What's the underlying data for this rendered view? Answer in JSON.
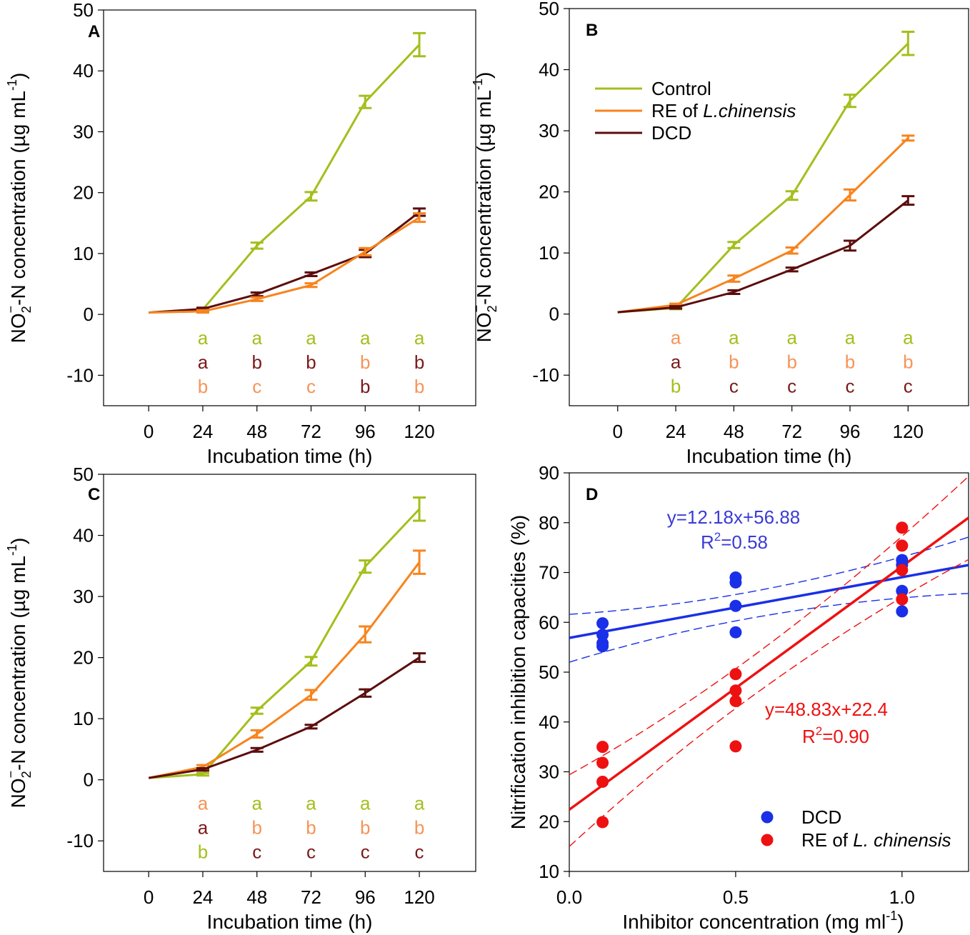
{
  "colors": {
    "control": "#a3bf1c",
    "re": "#f7841e",
    "dcd": "#5c0d0d",
    "letter_control": "#a3bf1c",
    "letter_re": "#f69458",
    "letter_dcd": "#7a1a1a",
    "blue_point": "#1a2fe8",
    "blue_line": "#1a2fe8",
    "blue_text": "#3b3bd6",
    "red_point": "#ee1111",
    "red_line": "#ee1111"
  },
  "chart_data": [
    {
      "panel": "A",
      "type": "line",
      "xlabel": "Incubation time (h)",
      "ylabel_parts": {
        "a": "NO",
        "sub": "2",
        "sup": "−",
        "b": "-N concentration (µg mL",
        "sup2": "-1",
        "c": ")"
      },
      "x": [
        0,
        24,
        48,
        72,
        96,
        120
      ],
      "xlim": [
        -20,
        145
      ],
      "ylim": [
        -15,
        50
      ],
      "yticks": [
        -10,
        0,
        10,
        20,
        30,
        40,
        50
      ],
      "series": [
        {
          "name": "Control",
          "color_key": "control",
          "values": [
            0.3,
            0.8,
            11.3,
            19.4,
            34.9,
            44.3
          ],
          "errors": [
            0.2,
            0.2,
            0.5,
            0.7,
            1.0,
            1.9
          ]
        },
        {
          "name": "DCD",
          "color_key": "dcd",
          "values": [
            0.3,
            0.9,
            3.3,
            6.6,
            10.0,
            16.8
          ],
          "errors": [
            0.1,
            0.2,
            0.3,
            0.3,
            0.6,
            0.6
          ]
        },
        {
          "name": "RE of L.chinensis",
          "color_key": "re",
          "values": [
            0.3,
            0.5,
            2.5,
            4.8,
            10.3,
            15.9
          ],
          "errors": [
            0.1,
            0.2,
            0.3,
            0.3,
            0.6,
            0.7
          ]
        }
      ],
      "letters": [
        {
          "x": 24,
          "rows": [
            [
              "a",
              "letter_control"
            ],
            [
              "a",
              "letter_dcd"
            ],
            [
              "b",
              "letter_re"
            ]
          ]
        },
        {
          "x": 48,
          "rows": [
            [
              "a",
              "letter_control"
            ],
            [
              "b",
              "letter_dcd"
            ],
            [
              "c",
              "letter_re"
            ]
          ]
        },
        {
          "x": 72,
          "rows": [
            [
              "a",
              "letter_control"
            ],
            [
              "b",
              "letter_dcd"
            ],
            [
              "c",
              "letter_re"
            ]
          ]
        },
        {
          "x": 96,
          "rows": [
            [
              "a",
              "letter_control"
            ],
            [
              "b",
              "letter_re"
            ],
            [
              "b",
              "letter_dcd"
            ]
          ]
        },
        {
          "x": 120,
          "rows": [
            [
              "a",
              "letter_control"
            ],
            [
              "b",
              "letter_dcd"
            ],
            [
              "b",
              "letter_re"
            ]
          ]
        }
      ]
    },
    {
      "panel": "B",
      "type": "line",
      "xlabel": "Incubation time (h)",
      "ylabel_parts": {
        "a": "NO",
        "sub": "2",
        "sup": "−",
        "b": "-N concentration (µg mL",
        "sup2": "-1",
        "c": ")"
      },
      "x": [
        0,
        24,
        48,
        72,
        96,
        120
      ],
      "xlim": [
        -20,
        145
      ],
      "ylim": [
        -15,
        50
      ],
      "yticks": [
        -10,
        0,
        10,
        20,
        30,
        40,
        50
      ],
      "legend": {
        "placement": "upper-left",
        "entries": [
          {
            "label": "Control",
            "color_key": "control"
          },
          {
            "label": "RE of ",
            "label_italic": "L.chinensis",
            "color_key": "re"
          },
          {
            "label": "DCD",
            "color_key": "dcd"
          }
        ]
      },
      "series": [
        {
          "name": "Control",
          "color_key": "control",
          "values": [
            0.3,
            1.0,
            11.3,
            19.4,
            34.9,
            44.3
          ],
          "errors": [
            0.2,
            0.2,
            0.5,
            0.7,
            1.0,
            1.9
          ]
        },
        {
          "name": "RE of L.chinensis",
          "color_key": "re",
          "values": [
            0.3,
            1.5,
            5.8,
            10.4,
            19.5,
            28.8
          ],
          "errors": [
            0.1,
            0.2,
            0.5,
            0.5,
            0.9,
            0.4
          ]
        },
        {
          "name": "DCD",
          "color_key": "dcd",
          "values": [
            0.3,
            1.1,
            3.6,
            7.3,
            11.2,
            18.6
          ],
          "errors": [
            0.1,
            0.2,
            0.3,
            0.3,
            0.8,
            0.7
          ]
        }
      ],
      "letters": [
        {
          "x": 24,
          "rows": [
            [
              "a",
              "letter_re"
            ],
            [
              "a",
              "letter_dcd"
            ],
            [
              "b",
              "letter_control"
            ]
          ]
        },
        {
          "x": 48,
          "rows": [
            [
              "a",
              "letter_control"
            ],
            [
              "b",
              "letter_re"
            ],
            [
              "c",
              "letter_dcd"
            ]
          ]
        },
        {
          "x": 72,
          "rows": [
            [
              "a",
              "letter_control"
            ],
            [
              "b",
              "letter_re"
            ],
            [
              "c",
              "letter_dcd"
            ]
          ]
        },
        {
          "x": 96,
          "rows": [
            [
              "a",
              "letter_control"
            ],
            [
              "b",
              "letter_re"
            ],
            [
              "c",
              "letter_dcd"
            ]
          ]
        },
        {
          "x": 120,
          "rows": [
            [
              "a",
              "letter_control"
            ],
            [
              "b",
              "letter_re"
            ],
            [
              "c",
              "letter_dcd"
            ]
          ]
        }
      ]
    },
    {
      "panel": "C",
      "type": "line",
      "xlabel": "Incubation time (h)",
      "ylabel_parts": {
        "a": "NO",
        "sub": "2",
        "sup": "−",
        "b": "-N concentration (µg mL",
        "sup2": "-1",
        "c": ")"
      },
      "x": [
        0,
        24,
        48,
        72,
        96,
        120
      ],
      "xlim": [
        -20,
        145
      ],
      "ylim": [
        -15,
        50
      ],
      "yticks": [
        -10,
        0,
        10,
        20,
        30,
        40,
        50
      ],
      "series": [
        {
          "name": "Control",
          "color_key": "control",
          "values": [
            0.3,
            0.9,
            11.3,
            19.4,
            34.9,
            44.3
          ],
          "errors": [
            0.2,
            0.2,
            0.5,
            0.7,
            1.0,
            1.9
          ]
        },
        {
          "name": "RE of L.chinensis",
          "color_key": "re",
          "values": [
            0.3,
            2.1,
            7.5,
            13.9,
            23.8,
            35.6
          ],
          "errors": [
            0.1,
            0.3,
            0.6,
            0.8,
            1.3,
            1.9
          ]
        },
        {
          "name": "DCD",
          "color_key": "dcd",
          "values": [
            0.3,
            1.7,
            4.9,
            8.7,
            14.2,
            20.0
          ],
          "errors": [
            0.1,
            0.2,
            0.3,
            0.3,
            0.6,
            0.7
          ]
        }
      ],
      "letters": [
        {
          "x": 24,
          "rows": [
            [
              "a",
              "letter_re"
            ],
            [
              "a",
              "letter_dcd"
            ],
            [
              "b",
              "letter_control"
            ]
          ]
        },
        {
          "x": 48,
          "rows": [
            [
              "a",
              "letter_control"
            ],
            [
              "b",
              "letter_re"
            ],
            [
              "c",
              "letter_dcd"
            ]
          ]
        },
        {
          "x": 72,
          "rows": [
            [
              "a",
              "letter_control"
            ],
            [
              "b",
              "letter_re"
            ],
            [
              "c",
              "letter_dcd"
            ]
          ]
        },
        {
          "x": 96,
          "rows": [
            [
              "a",
              "letter_control"
            ],
            [
              "b",
              "letter_re"
            ],
            [
              "c",
              "letter_dcd"
            ]
          ]
        },
        {
          "x": 120,
          "rows": [
            [
              "a",
              "letter_control"
            ],
            [
              "b",
              "letter_re"
            ],
            [
              "c",
              "letter_dcd"
            ]
          ]
        }
      ]
    },
    {
      "panel": "D",
      "type": "scatter",
      "xlabel_parts": {
        "a": "Inhibitor concentration (mg ml",
        "sup": "-1",
        "b": ")"
      },
      "ylabel": "Nitrification inhibition capacities (%)",
      "xlim": [
        0,
        1.2
      ],
      "ylim": [
        10,
        90
      ],
      "xticks": [
        0.0,
        0.5,
        1.0
      ],
      "xtick_labels": [
        "0.0",
        "0.5",
        "1.0"
      ],
      "yticks": [
        10,
        20,
        30,
        40,
        50,
        60,
        70,
        80,
        90
      ],
      "series": [
        {
          "name": "DCD",
          "color_key": "blue_point",
          "x": [
            0.1,
            0.1,
            0.1,
            0.1,
            0.5,
            0.5,
            0.5,
            0.5,
            1.0,
            1.0,
            1.0,
            1.0
          ],
          "y": [
            59.8,
            57.5,
            55.8,
            55.2,
            69.0,
            68.0,
            63.3,
            58.0,
            72.5,
            71.5,
            66.3,
            62.2
          ]
        },
        {
          "name": "RE of L. chinensis",
          "color_key": "red_point",
          "x": [
            0.1,
            0.1,
            0.1,
            0.1,
            0.5,
            0.5,
            0.5,
            0.5,
            1.0,
            1.0,
            1.0,
            1.0
          ],
          "y": [
            35.0,
            31.8,
            28.0,
            19.9,
            49.6,
            46.3,
            44.2,
            35.1,
            79.0,
            75.4,
            70.5,
            64.6
          ]
        }
      ],
      "fits": [
        {
          "name": "DCD fit",
          "slope": 12.18,
          "intercept": 56.88,
          "color_key": "blue_line",
          "ci_left": [
            52.0,
            61.6
          ],
          "ci_right": [
            65.8,
            77.1
          ]
        },
        {
          "name": "RE fit",
          "slope": 48.83,
          "intercept": 22.4,
          "color_key": "red_line",
          "ci_left": [
            15.0,
            29.4
          ],
          "ci_right": [
            72.6,
            89.3
          ]
        }
      ],
      "equations": [
        {
          "eq": "y=12.18x+56.88",
          "r2_pre": "R",
          "r2_sup": "2",
          "r2_post": "=0.58",
          "color_key": "blue_text"
        },
        {
          "eq": "y=48.83x+22.4",
          "r2_pre": "R",
          "r2_sup": "2",
          "r2_post": "=0.90",
          "color_key": "red_line"
        }
      ],
      "legend": {
        "placement": "lower-right",
        "entries": [
          {
            "label": "DCD",
            "color_key": "blue_point"
          },
          {
            "label": "RE of ",
            "label_italic": "L. chinensis",
            "color_key": "red_point"
          }
        ]
      }
    }
  ]
}
